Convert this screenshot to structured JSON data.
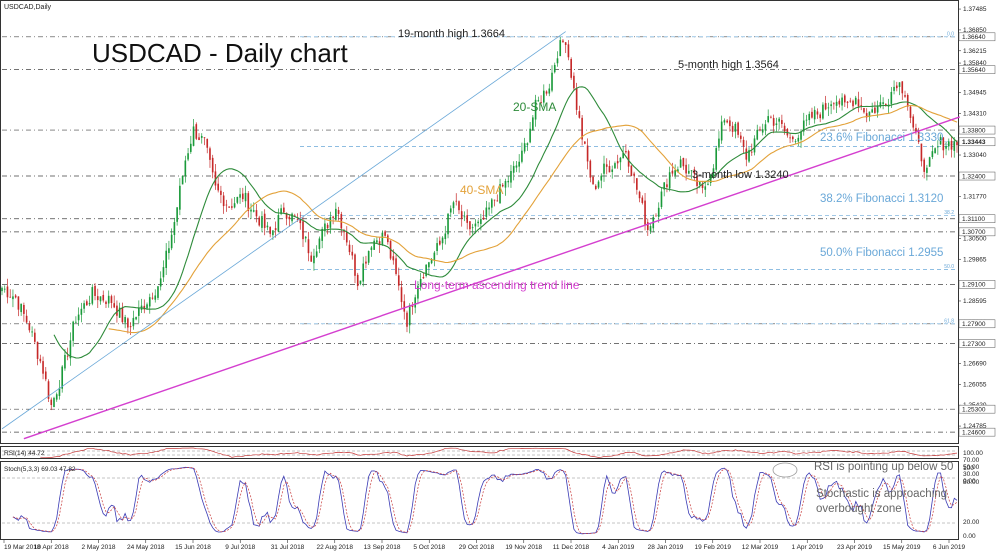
{
  "symbol_label": "USDCAD,Daily",
  "title": "USDCAD - Daily chart",
  "colors": {
    "bull": "#1a9a3a",
    "bear": "#c62828",
    "sma20": "#2e8b3a",
    "sma40": "#e3a23a",
    "trendline": "#d43fcf",
    "fib": "#6aa8d8",
    "rsi": "#c83c3c",
    "stoch_k": "#3b3bb5",
    "stoch_d": "#c83c3c",
    "annotation": "#666666"
  },
  "annotations": {
    "high19": "19-month high 1.3664",
    "high5": "5-month high 1.3564",
    "sma20": "20-SMA",
    "sma40": "40-SMA",
    "fib236": "23.6% Fibonacci 1.3330",
    "low3": "3-month low 1.3240",
    "fib382": "38.2% Fibonacci 1.3120",
    "fib50": "50.0% Fibonacci 1.2955",
    "trend": "Long-term ascending trend line",
    "rsi_note": "RSI is pointing up below 50",
    "stoch_note1": "Stochastic is approaching",
    "stoch_note2": "overbought zone"
  },
  "chart_data": {
    "type": "candlestick",
    "yrange": [
      1.243,
      1.377
    ],
    "y_ticks": [
      "1.37485",
      "1.36850",
      "1.36215",
      "1.35840",
      "1.34945",
      "1.34310",
      "1.33800",
      "1.33443",
      "1.33040",
      "1.32400",
      "1.31770",
      "1.31100",
      "1.30700",
      "1.30500",
      "1.29865",
      "1.29100",
      "1.28595",
      "1.27960",
      "1.27300",
      "1.26690",
      "1.26055",
      "1.25420",
      "1.25300",
      "1.24785",
      "1.24600"
    ],
    "price_labels": [
      {
        "value": 1.3664,
        "text": "1.36640"
      },
      {
        "value": 1.3564,
        "text": "1.35640"
      },
      {
        "value": 1.338,
        "text": "1.33800"
      },
      {
        "value": 1.33443,
        "text": "1.33443",
        "current": true
      },
      {
        "value": 1.324,
        "text": "1.32400"
      },
      {
        "value": 1.311,
        "text": "1.31100"
      },
      {
        "value": 1.307,
        "text": "1.30700"
      },
      {
        "value": 1.291,
        "text": "1.29100"
      },
      {
        "value": 1.279,
        "text": "1.27900"
      },
      {
        "value": 1.273,
        "text": "1.27300"
      },
      {
        "value": 1.253,
        "text": "1.25300"
      },
      {
        "value": 1.246,
        "text": "1.24600"
      }
    ],
    "horizontal_levels": [
      1.3664,
      1.3564,
      1.338,
      1.324,
      1.311,
      1.307,
      1.291,
      1.279,
      1.273,
      1.253,
      1.246
    ],
    "fibonacci_levels": [
      {
        "value": 1.3664,
        "label": "0.0"
      },
      {
        "value": 1.333,
        "label": "23.6"
      },
      {
        "value": 1.312,
        "label": "38.2"
      },
      {
        "value": 1.2955,
        "label": "50.0"
      },
      {
        "value": 1.279,
        "label": "61.8"
      }
    ],
    "x_labels": [
      "19 Mar 2018",
      "10 Apr 2018",
      "2 May 2018",
      "24 May 2018",
      "15 Jun 2018",
      "9 Jul 2018",
      "31 Jul 2018",
      "22 Aug 2018",
      "13 Sep 2018",
      "5 Oct 2018",
      "29 Oct 2018",
      "19 Nov 2018",
      "11 Dec 2018",
      "4 Jan 2019",
      "28 Jan 2019",
      "19 Feb 2019",
      "12 Mar 2019",
      "1 Apr 2019",
      "23 Apr 2019",
      "15 May 2019",
      "6 Jun 2019"
    ],
    "keypoints": [
      [
        0,
        1.29
      ],
      [
        5,
        1.287
      ],
      [
        10,
        1.278
      ],
      [
        15,
        1.265
      ],
      [
        18,
        1.254
      ],
      [
        22,
        1.264
      ],
      [
        27,
        1.281
      ],
      [
        33,
        1.288
      ],
      [
        40,
        1.286
      ],
      [
        46,
        1.278
      ],
      [
        52,
        1.285
      ],
      [
        58,
        1.292
      ],
      [
        63,
        1.31
      ],
      [
        67,
        1.329
      ],
      [
        70,
        1.338
      ],
      [
        74,
        1.334
      ],
      [
        78,
        1.32
      ],
      [
        83,
        1.315
      ],
      [
        88,
        1.318
      ],
      [
        93,
        1.312
      ],
      [
        98,
        1.306
      ],
      [
        103,
        1.314
      ],
      [
        108,
        1.31
      ],
      [
        113,
        1.3
      ],
      [
        118,
        1.308
      ],
      [
        122,
        1.315
      ],
      [
        126,
        1.305
      ],
      [
        130,
        1.292
      ],
      [
        135,
        1.304
      ],
      [
        140,
        1.306
      ],
      [
        145,
        1.29
      ],
      [
        148,
        1.28
      ],
      [
        152,
        1.292
      ],
      [
        156,
        1.298
      ],
      [
        160,
        1.303
      ],
      [
        165,
        1.316
      ],
      [
        170,
        1.308
      ],
      [
        175,
        1.309
      ],
      [
        180,
        1.317
      ],
      [
        185,
        1.323
      ],
      [
        190,
        1.33
      ],
      [
        195,
        1.345
      ],
      [
        200,
        1.352
      ],
      [
        203,
        1.362
      ],
      [
        206,
        1.366
      ],
      [
        209,
        1.35
      ],
      [
        212,
        1.336
      ],
      [
        216,
        1.32
      ],
      [
        220,
        1.326
      ],
      [
        224,
        1.328
      ],
      [
        228,
        1.332
      ],
      [
        232,
        1.32
      ],
      [
        236,
        1.308
      ],
      [
        240,
        1.316
      ],
      [
        244,
        1.325
      ],
      [
        248,
        1.328
      ],
      [
        252,
        1.324
      ],
      [
        256,
        1.319
      ],
      [
        260,
        1.328
      ],
      [
        264,
        1.342
      ],
      [
        268,
        1.338
      ],
      [
        272,
        1.33
      ],
      [
        276,
        1.336
      ],
      [
        280,
        1.342
      ],
      [
        284,
        1.34
      ],
      [
        288,
        1.335
      ],
      [
        292,
        1.338
      ],
      [
        296,
        1.342
      ],
      [
        300,
        1.344
      ],
      [
        304,
        1.348
      ],
      [
        308,
        1.345
      ],
      [
        312,
        1.348
      ],
      [
        316,
        1.343
      ],
      [
        320,
        1.345
      ],
      [
        324,
        1.348
      ],
      [
        327,
        1.353
      ],
      [
        330,
        1.35
      ],
      [
        333,
        1.338
      ],
      [
        336,
        1.33
      ],
      [
        338,
        1.325
      ],
      [
        340,
        1.33
      ],
      [
        343,
        1.334
      ]
    ],
    "trendline": {
      "start": [
        8,
        1.244
      ],
      "end": [
        350,
        1.342
      ]
    },
    "channel_line": {
      "start": [
        0,
        1.247
      ],
      "end": [
        206,
        1.368
      ]
    },
    "rsi": {
      "label": "RSI(14) 44.72",
      "levels": [
        100,
        70,
        50,
        30,
        0
      ],
      "tick_labels": [
        "100.00",
        "70.00",
        "50.00",
        "30.00",
        "0.00"
      ]
    },
    "stochastic": {
      "label": "Stoch(5,3,3) 69.03 47.82",
      "tick_labels": [
        "100",
        "80.00",
        "20.00",
        "0.00"
      ]
    }
  }
}
